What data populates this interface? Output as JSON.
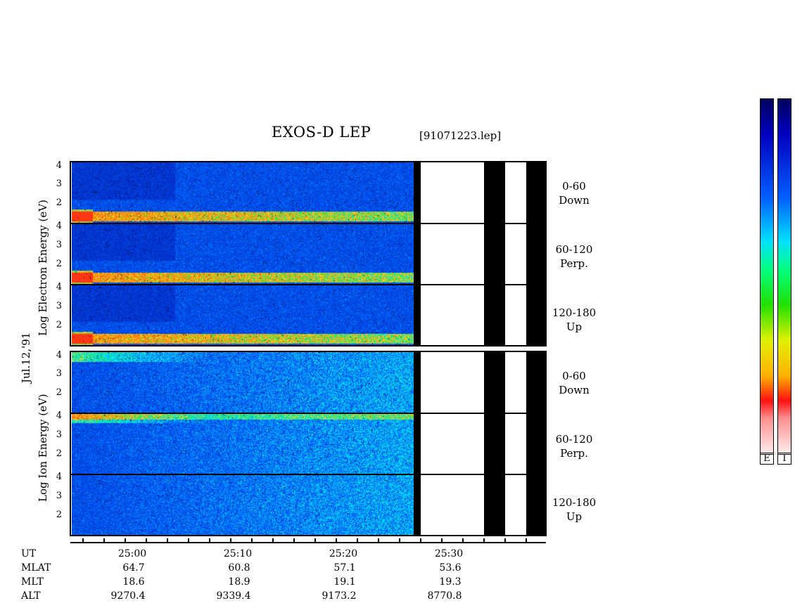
{
  "chart_data": {
    "type": "heatmap",
    "title": "EXOS-D LEP",
    "file": "[91071223.lep]",
    "date_label": "Jul.12,'91",
    "x_ticks": [
      "25:00",
      "25:10",
      "25:20",
      "25:30"
    ],
    "electron_ylabel": "Log Electron Energy (eV)",
    "ion_ylabel": "Log Ion Energy (eV)",
    "electron_ticks": [
      [
        "4",
        "3",
        "2"
      ],
      [
        "4",
        "3",
        "2"
      ],
      [
        "4",
        "3",
        "2"
      ]
    ],
    "ion_ticks": [
      [
        "4",
        "3",
        "2"
      ],
      [
        "4",
        "3",
        "2"
      ],
      [
        "4",
        "3",
        "2"
      ]
    ],
    "pitch_angles": [
      {
        "range": "0-60",
        "dir": "Down"
      },
      {
        "range": "60-120",
        "dir": "Perp."
      },
      {
        "range": "120-180",
        "dir": "Up"
      }
    ],
    "colorbar_labels": [
      "E",
      "I"
    ],
    "orbit": {
      "labels": [
        "UT",
        "MLAT",
        "MLT",
        "ALT"
      ],
      "mlat": [
        "64.7",
        "60.8",
        "57.1",
        "53.6"
      ],
      "mlt": [
        "18.6",
        "18.9",
        "19.1",
        "19.3"
      ],
      "alt": [
        "9270.4",
        "9339.4",
        "9173.2",
        "8770.8"
      ]
    },
    "colors": {
      "bg_dark": "#000080",
      "bg_mid": "#0050ff",
      "band": "#00e060",
      "hot": "#ff2020"
    }
  }
}
